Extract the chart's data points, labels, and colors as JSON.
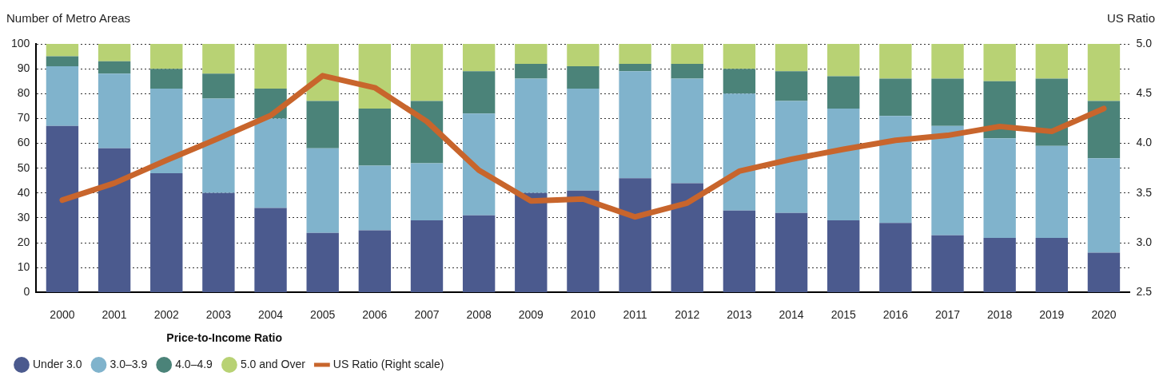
{
  "chart_data": {
    "type": "bar",
    "stacked": true,
    "ylabel": "Number of Metro Areas",
    "y2label": "US Ratio",
    "legend_title": "Price-to-Income Ratio",
    "categories": [
      "2000",
      "2001",
      "2002",
      "2003",
      "2004",
      "2005",
      "2006",
      "2007",
      "2008",
      "2009",
      "2010",
      "2011",
      "2012",
      "2013",
      "2014",
      "2015",
      "2016",
      "2017",
      "2018",
      "2019",
      "2020"
    ],
    "series": [
      {
        "name": "Under 3.0",
        "color": "#4b5a8e",
        "values": [
          67,
          58,
          48,
          40,
          34,
          24,
          25,
          29,
          31,
          40,
          41,
          46,
          44,
          33,
          32,
          29,
          28,
          23,
          22,
          22,
          16
        ]
      },
      {
        "name": "3.0–3.9",
        "color": "#80b3cc",
        "values": [
          24,
          30,
          34,
          38,
          36,
          34,
          26,
          23,
          41,
          46,
          41,
          43,
          42,
          47,
          45,
          45,
          43,
          44,
          40,
          37,
          38
        ]
      },
      {
        "name": "4.0–4.9",
        "color": "#4b8379",
        "values": [
          4,
          5,
          8,
          10,
          12,
          19,
          23,
          25,
          17,
          6,
          9,
          3,
          6,
          10,
          12,
          13,
          15,
          19,
          23,
          27,
          23
        ]
      },
      {
        "name": "5.0 and Over",
        "color": "#b8d274",
        "values": [
          5,
          7,
          10,
          12,
          18,
          23,
          26,
          23,
          11,
          8,
          9,
          8,
          8,
          10,
          11,
          13,
          14,
          14,
          15,
          14,
          23
        ]
      },
      {
        "name": "US Ratio (Right scale)",
        "type": "line",
        "axis": "y2",
        "color": "#c8652c",
        "values": [
          3.43,
          3.6,
          3.83,
          4.05,
          4.28,
          4.68,
          4.56,
          4.22,
          3.73,
          3.42,
          3.44,
          3.26,
          3.4,
          3.72,
          3.84,
          3.94,
          4.03,
          4.08,
          4.17,
          4.12,
          4.35
        ]
      }
    ],
    "ylim": [
      0,
      100
    ],
    "yticks": [
      0,
      10,
      20,
      30,
      40,
      50,
      60,
      70,
      80,
      90,
      100
    ],
    "y2lim": [
      2.5,
      5.0
    ],
    "y2ticks": [
      {
        "value": 2.5,
        "label": "2.5"
      },
      {
        "value": 3.0,
        "label": "3.0"
      },
      {
        "value": 3.5,
        "label": "3.5"
      },
      {
        "value": 4.0,
        "label": "4.0"
      },
      {
        "value": 4.5,
        "label": "4.5"
      },
      {
        "value": 5.0,
        "label": "5.0"
      }
    ],
    "grid": "y",
    "legend": "bottom left",
    "marker": "none",
    "line_style": "solid"
  }
}
